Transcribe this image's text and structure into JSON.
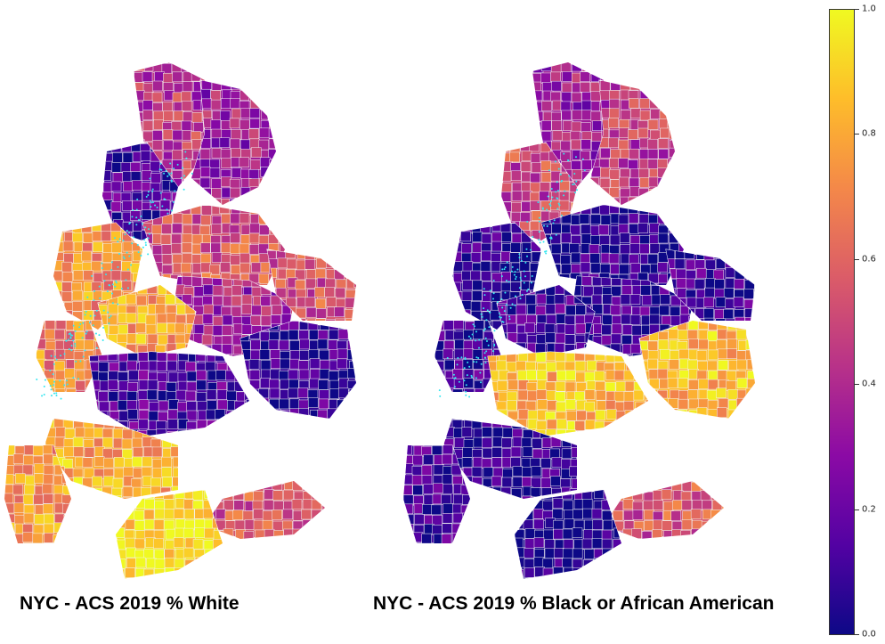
{
  "maps": [
    {
      "title": "NYC - ACS 2019  % White",
      "tint": "white",
      "regions": {
        "bronx_west": 0.45,
        "bronx_east": 0.35,
        "upper_manhattan": 0.12,
        "midtown": 0.75,
        "lower_manhattan": 0.7,
        "queens_north": 0.55,
        "queens_central": 0.35,
        "queens_east": 0.55,
        "queens_south": 0.08,
        "brooklyn_north": 0.78,
        "brooklyn_central": 0.12,
        "brooklyn_south": 0.82,
        "staten_island": 0.75,
        "rockaway": 0.55,
        "jfk": 0.95
      }
    },
    {
      "title": "NYC - ACS 2019  % Black or African American",
      "tint": "black",
      "regions": {
        "bronx_west": 0.35,
        "bronx_east": 0.45,
        "upper_manhattan": 0.5,
        "midtown": 0.05,
        "lower_manhattan": 0.08,
        "queens_north": 0.05,
        "queens_central": 0.08,
        "queens_east": 0.1,
        "queens_south": 0.85,
        "brooklyn_north": 0.1,
        "brooklyn_central": 0.85,
        "brooklyn_south": 0.05,
        "staten_island": 0.1,
        "rockaway": 0.55,
        "jfk": 0.02
      }
    }
  ],
  "colorbar": {
    "colormap": "plasma",
    "min": 0.0,
    "max": 1.0,
    "ticks": [
      "0.0",
      "0.2",
      "0.4",
      "0.6",
      "0.8",
      "1.0"
    ],
    "colors": [
      "#0d0887",
      "#5302a3",
      "#8b0aa5",
      "#b83289",
      "#db5c68",
      "#f48849",
      "#febd2a",
      "#f0f921"
    ]
  }
}
